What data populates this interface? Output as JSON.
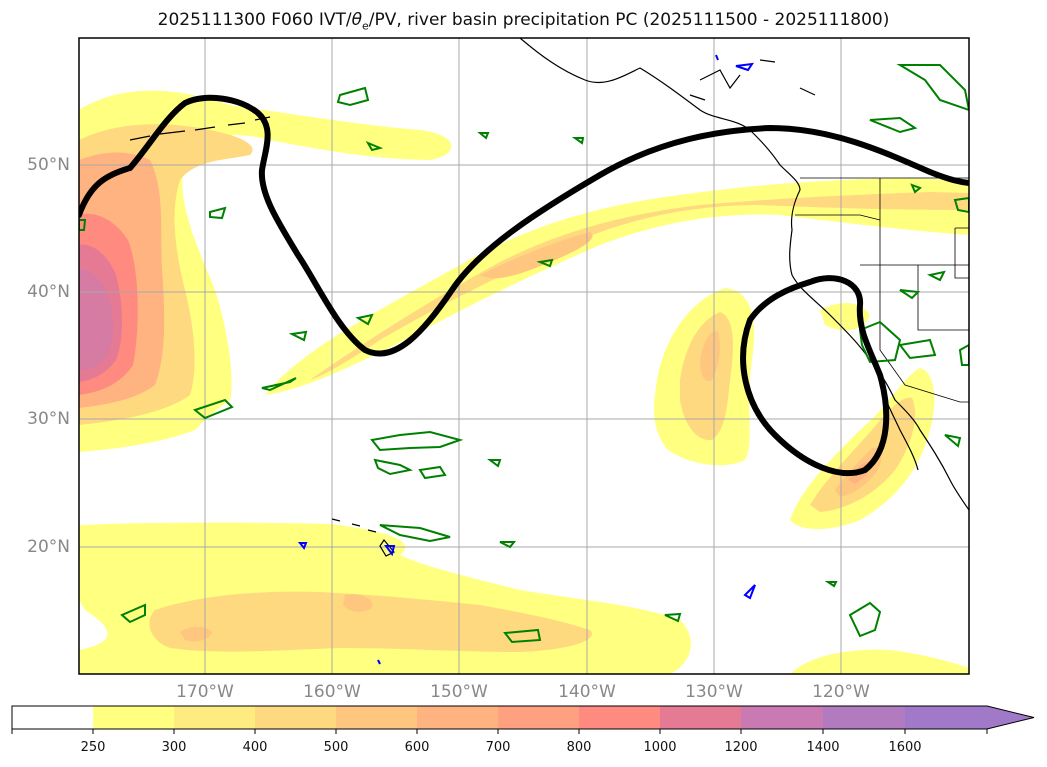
{
  "title": {
    "prefix": "2025111300 F060 IVT/",
    "theta": "θ",
    "theta_sub": "e",
    "suffix": "/PV, river basin precipitation PC (2025111500 - 2025111800)"
  },
  "map": {
    "projection": "PlateCarree",
    "lon_range": [
      -180,
      -110
    ],
    "lat_range": [
      10,
      60
    ],
    "lat_ticks": [
      "50°N",
      "40°N",
      "30°N",
      "20°N"
    ],
    "lon_ticks": [
      "170°W",
      "160°W",
      "150°W",
      "140°W",
      "130°W",
      "120°W"
    ],
    "field": "Integrated Vapor Transport (IVT)",
    "contours": [
      "dynamic tropopause (black, thick)",
      "θe (green)",
      "PV (blue)"
    ]
  },
  "colorbar": {
    "levels": [
      "250",
      "300",
      "400",
      "500",
      "600",
      "700",
      "800",
      "1000",
      "1200",
      "1400",
      "1600"
    ],
    "colors": [
      "#ffffff",
      "#ffff80",
      "#ffec80",
      "#ffd980",
      "#ffc680",
      "#ffb380",
      "#ffa080",
      "#ff8a80",
      "#e47a94",
      "#c97ab3",
      "#b27abf",
      "#a07ac8"
    ],
    "extend": "max"
  },
  "colors": {
    "ivt_250": "#ffff80",
    "ivt_400": "#ffd980",
    "ivt_600": "#ffb380",
    "ivt_800": "#ff8a80",
    "ivt_1000": "#e47a94",
    "ivt_1200": "#d57ba4",
    "theta_e": "#008000",
    "pv": "#0000ff",
    "tropopause": "#000000",
    "coast": "#000000",
    "grid": "#a8a8a8"
  }
}
